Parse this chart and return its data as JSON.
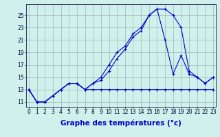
{
  "xlabel": "Graphe des températures (°c)",
  "background_color": "#cff0eb",
  "grid_color": "#9ab8b5",
  "line_color": "#0000cc",
  "x_ticks": [
    0,
    1,
    2,
    3,
    4,
    5,
    6,
    7,
    8,
    9,
    10,
    11,
    12,
    13,
    14,
    15,
    16,
    17,
    18,
    19,
    20,
    21,
    22,
    23
  ],
  "y_ticks": [
    11,
    13,
    15,
    17,
    19,
    21,
    23,
    25
  ],
  "xlim": [
    -0.3,
    23.3
  ],
  "ylim": [
    10.2,
    26.8
  ],
  "series1": [
    13,
    11,
    11,
    12,
    13,
    14,
    14,
    13,
    13,
    13,
    13,
    13,
    13,
    13,
    13,
    13,
    13,
    13,
    13,
    13,
    13,
    13,
    13,
    13
  ],
  "series2": [
    13,
    11,
    11,
    12,
    13,
    14,
    14,
    13,
    14,
    15,
    17,
    19,
    20,
    22,
    23,
    25,
    26,
    26,
    25,
    23,
    16,
    15,
    14,
    15
  ],
  "series3": [
    13,
    11,
    11,
    12,
    13,
    14,
    14,
    13,
    14,
    14.5,
    16,
    18,
    19.5,
    21.5,
    22.5,
    25,
    26,
    21,
    15.5,
    18.5,
    15.5,
    15,
    14,
    15
  ],
  "tick_fontsize": 5.5,
  "xlabel_fontsize": 7.5
}
